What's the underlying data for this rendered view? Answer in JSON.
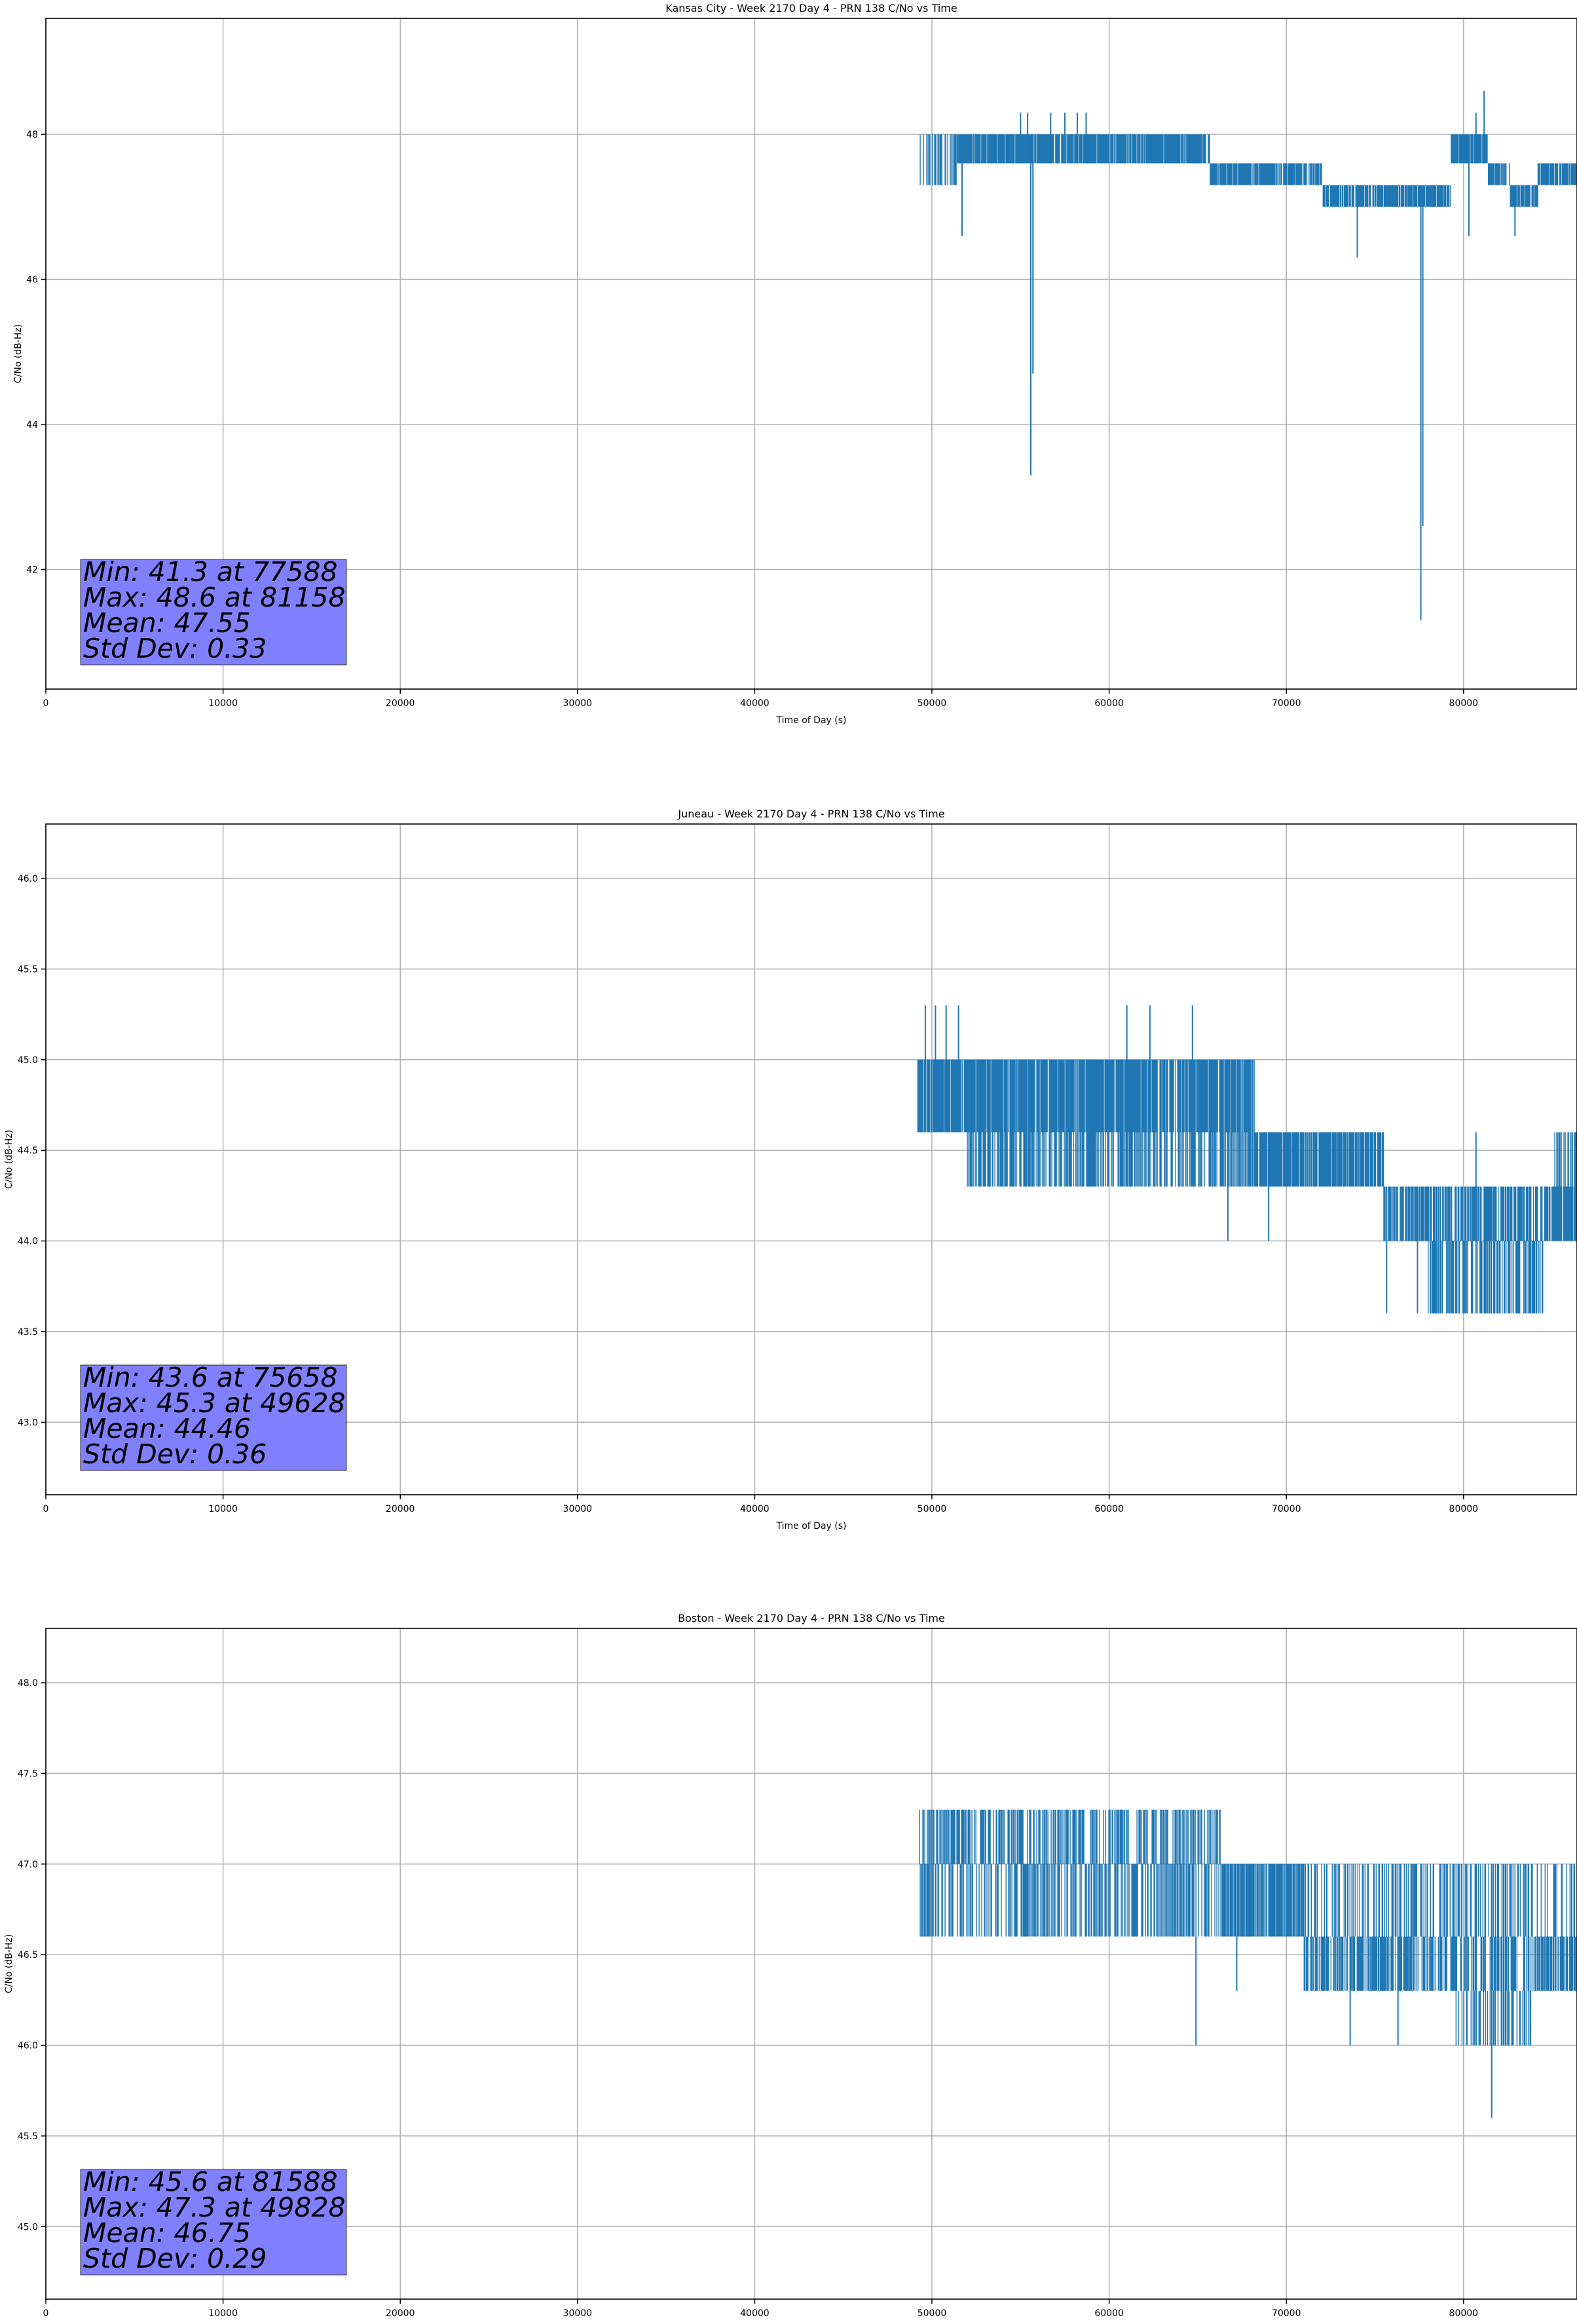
{
  "chart_data": [
    {
      "type": "line",
      "title": "Kansas City - Week 2170 Day 4 - PRN 138 C/No vs Time",
      "xlabel": "Time of Day (s)",
      "ylabel": "C/No (dB-Hz)",
      "xlim": [
        0,
        86400
      ],
      "ylim": [
        40.35,
        49.6
      ],
      "xticks": [
        0,
        10000,
        20000,
        30000,
        40000,
        50000,
        60000,
        70000,
        80000
      ],
      "yticks": [
        42,
        44,
        46,
        48
      ],
      "ytick_labels": [
        "42",
        "44",
        "46",
        "48"
      ],
      "grid": true,
      "color": "#1f77b4",
      "stats": [
        "Min: 41.3 at 77588",
        "Max: 48.6 at 81158",
        "Mean: 47.55",
        "Std Dev: 0.33"
      ],
      "segments": [
        {
          "x": [
            49300,
            51400
          ],
          "low": 47.3,
          "high": 48.0,
          "density": 0.45
        },
        {
          "x": [
            51400,
            65700
          ],
          "low": 47.6,
          "high": 48.0,
          "density": 0.9
        },
        {
          "x": [
            65700,
            72000
          ],
          "low": 47.3,
          "high": 47.6,
          "density": 0.85
        },
        {
          "x": [
            72000,
            79300
          ],
          "low": 47.0,
          "high": 47.3,
          "density": 0.8
        },
        {
          "x": [
            79300,
            81400
          ],
          "low": 47.6,
          "high": 48.0,
          "density": 0.9
        },
        {
          "x": [
            81400,
            82600
          ],
          "low": 47.3,
          "high": 47.6,
          "density": 0.7
        },
        {
          "x": [
            82600,
            84200
          ],
          "low": 47.0,
          "high": 47.3,
          "density": 0.9
        },
        {
          "x": [
            84200,
            86400
          ],
          "low": 47.3,
          "high": 47.6,
          "density": 0.8
        }
      ],
      "spikes": [
        {
          "x": 51700,
          "low": 46.6,
          "high": 48.0
        },
        {
          "x": 55000,
          "low": 47.6,
          "high": 48.3
        },
        {
          "x": 55400,
          "low": 47.6,
          "high": 48.3
        },
        {
          "x": 55580,
          "low": 43.3,
          "high": 48.0
        },
        {
          "x": 55700,
          "low": 44.7,
          "high": 48.0
        },
        {
          "x": 56700,
          "low": 47.6,
          "high": 48.3
        },
        {
          "x": 57500,
          "low": 47.6,
          "high": 48.3
        },
        {
          "x": 58200,
          "low": 47.6,
          "high": 48.3
        },
        {
          "x": 58700,
          "low": 47.6,
          "high": 48.3
        },
        {
          "x": 74000,
          "low": 46.3,
          "high": 47.3
        },
        {
          "x": 77588,
          "low": 41.3,
          "high": 47.3
        },
        {
          "x": 77700,
          "low": 42.6,
          "high": 47.3
        },
        {
          "x": 80300,
          "low": 46.6,
          "high": 48.0
        },
        {
          "x": 80700,
          "low": 47.6,
          "high": 48.3
        },
        {
          "x": 81158,
          "low": 47.6,
          "high": 48.6
        },
        {
          "x": 82900,
          "low": 46.6,
          "high": 47.3
        }
      ]
    },
    {
      "type": "line",
      "title": "Juneau - Week 2170 Day 4 - PRN 138 C/No vs Time",
      "xlabel": "Time of Day (s)",
      "ylabel": "C/No (dB-Hz)",
      "xlim": [
        0,
        86400
      ],
      "ylim": [
        42.6,
        46.3
      ],
      "xticks": [
        0,
        10000,
        20000,
        30000,
        40000,
        50000,
        60000,
        70000,
        80000
      ],
      "yticks": [
        43.0,
        43.5,
        44.0,
        44.5,
        45.0,
        45.5,
        46.0
      ],
      "ytick_labels": [
        "43.0",
        "43.5",
        "44.0",
        "44.5",
        "45.0",
        "45.5",
        "46.0"
      ],
      "grid": true,
      "color": "#1f77b4",
      "stats": [
        "Min: 43.6 at 75658",
        "Max: 45.3 at 49628",
        "Mean: 44.46",
        "Std Dev: 0.36"
      ],
      "segments": [
        {
          "x": [
            49200,
            52000
          ],
          "low": 44.6,
          "high": 45.0,
          "density": 0.9
        },
        {
          "x": [
            52000,
            68200
          ],
          "low": 44.3,
          "high": 45.0,
          "density": 0.6
        },
        {
          "x": [
            52000,
            68200
          ],
          "low": 44.6,
          "high": 45.0,
          "density": 0.7
        },
        {
          "x": [
            68200,
            75500
          ],
          "low": 44.3,
          "high": 44.6,
          "density": 0.85
        },
        {
          "x": [
            75500,
            78000
          ],
          "low": 44.0,
          "high": 44.3,
          "density": 0.8
        },
        {
          "x": [
            78000,
            84500
          ],
          "low": 43.6,
          "high": 44.0,
          "density": 0.6
        },
        {
          "x": [
            78000,
            86400
          ],
          "low": 44.0,
          "high": 44.3,
          "density": 0.75
        },
        {
          "x": [
            85000,
            86400
          ],
          "low": 44.0,
          "high": 44.6,
          "density": 0.5
        }
      ],
      "spikes": [
        {
          "x": 49628,
          "low": 44.6,
          "high": 45.3
        },
        {
          "x": 50200,
          "low": 44.6,
          "high": 45.3
        },
        {
          "x": 50800,
          "low": 44.6,
          "high": 45.3
        },
        {
          "x": 51500,
          "low": 44.6,
          "high": 45.3
        },
        {
          "x": 61000,
          "low": 44.6,
          "high": 45.3
        },
        {
          "x": 62300,
          "low": 44.6,
          "high": 45.3
        },
        {
          "x": 64700,
          "low": 44.6,
          "high": 45.3
        },
        {
          "x": 66700,
          "low": 44.0,
          "high": 44.6
        },
        {
          "x": 69000,
          "low": 44.0,
          "high": 44.6
        },
        {
          "x": 75658,
          "low": 43.6,
          "high": 44.3
        },
        {
          "x": 77400,
          "low": 43.6,
          "high": 44.3
        },
        {
          "x": 80700,
          "low": 43.6,
          "high": 44.6
        }
      ]
    },
    {
      "type": "line",
      "title": "Boston - Week 2170 Day 4 - PRN 138 C/No vs Time",
      "xlabel": "Time of Day (s)",
      "ylabel": "C/No (dB-Hz)",
      "xlim": [
        0,
        86400
      ],
      "ylim": [
        44.6,
        48.3
      ],
      "xticks": [
        0,
        10000,
        20000,
        30000,
        40000,
        50000,
        60000,
        70000,
        80000
      ],
      "yticks": [
        45.0,
        45.5,
        46.0,
        46.5,
        47.0,
        47.5,
        48.0
      ],
      "ytick_labels": [
        "45.0",
        "45.5",
        "46.0",
        "46.5",
        "47.0",
        "47.5",
        "48.0"
      ],
      "grid": true,
      "color": "#1f77b4",
      "stats": [
        "Min: 45.6 at 81588",
        "Max: 47.3 at 49828",
        "Mean: 46.75",
        "Std Dev: 0.29"
      ],
      "segments": [
        {
          "x": [
            49300,
            66300
          ],
          "low": 46.6,
          "high": 47.0,
          "density": 0.5
        },
        {
          "x": [
            49300,
            66300
          ],
          "low": 47.0,
          "high": 47.3,
          "density": 0.5
        },
        {
          "x": [
            66300,
            71000
          ],
          "low": 46.6,
          "high": 47.0,
          "density": 0.85
        },
        {
          "x": [
            71000,
            86400
          ],
          "low": 46.3,
          "high": 46.6,
          "density": 0.6
        },
        {
          "x": [
            71000,
            86400
          ],
          "low": 46.6,
          "high": 47.0,
          "density": 0.35
        },
        {
          "x": [
            79500,
            83800
          ],
          "low": 46.0,
          "high": 46.3,
          "density": 0.4
        }
      ],
      "spikes": [
        {
          "x": 49828,
          "low": 46.6,
          "high": 47.3
        },
        {
          "x": 64900,
          "low": 46.0,
          "high": 46.6
        },
        {
          "x": 67200,
          "low": 46.3,
          "high": 46.6
        },
        {
          "x": 73600,
          "low": 46.0,
          "high": 46.6
        },
        {
          "x": 76300,
          "low": 46.0,
          "high": 46.6
        },
        {
          "x": 81588,
          "low": 45.6,
          "high": 46.3
        }
      ]
    }
  ]
}
